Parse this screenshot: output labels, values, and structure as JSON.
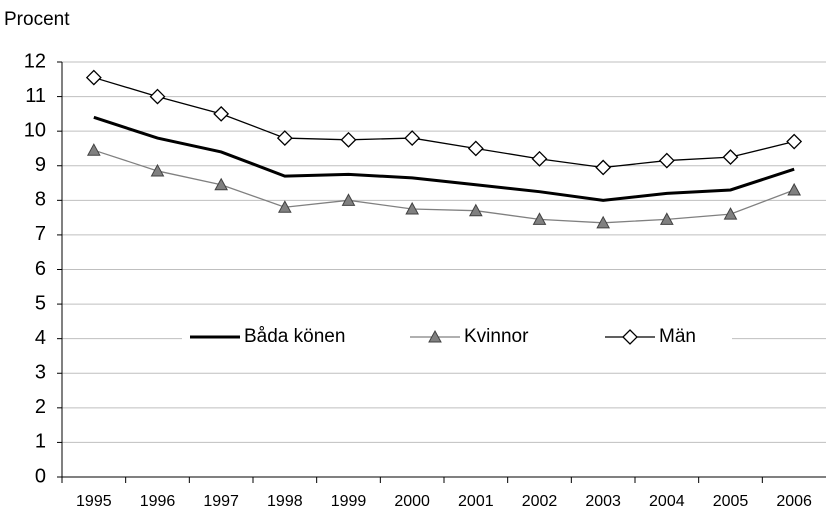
{
  "chart_data": {
    "type": "line",
    "title": "Procent",
    "categories": [
      "1995",
      "1996",
      "1997",
      "1998",
      "1999",
      "2000",
      "2001",
      "2002",
      "2003",
      "2004",
      "2005",
      "2006"
    ],
    "series": [
      {
        "name": "Båda könen",
        "color": "#000000",
        "marker": "none",
        "values": [
          10.4,
          9.8,
          9.4,
          8.7,
          8.75,
          8.65,
          8.45,
          8.25,
          8.0,
          8.2,
          8.3,
          8.9
        ]
      },
      {
        "name": "Kvinnor",
        "color": "#808080",
        "marker": "triangle",
        "values": [
          9.45,
          8.85,
          8.45,
          7.8,
          8.0,
          7.75,
          7.7,
          7.45,
          7.35,
          7.45,
          7.6,
          8.3
        ]
      },
      {
        "name": "Män",
        "color": "#000000",
        "marker": "diamond",
        "values": [
          11.55,
          11.0,
          10.5,
          9.8,
          9.75,
          9.8,
          9.5,
          9.2,
          8.95,
          9.15,
          9.25,
          9.7
        ]
      }
    ],
    "ylim": [
      0,
      12
    ],
    "yticks": [
      0,
      1,
      2,
      3,
      4,
      5,
      6,
      7,
      8,
      9,
      10,
      11,
      12
    ],
    "grid": true
  }
}
